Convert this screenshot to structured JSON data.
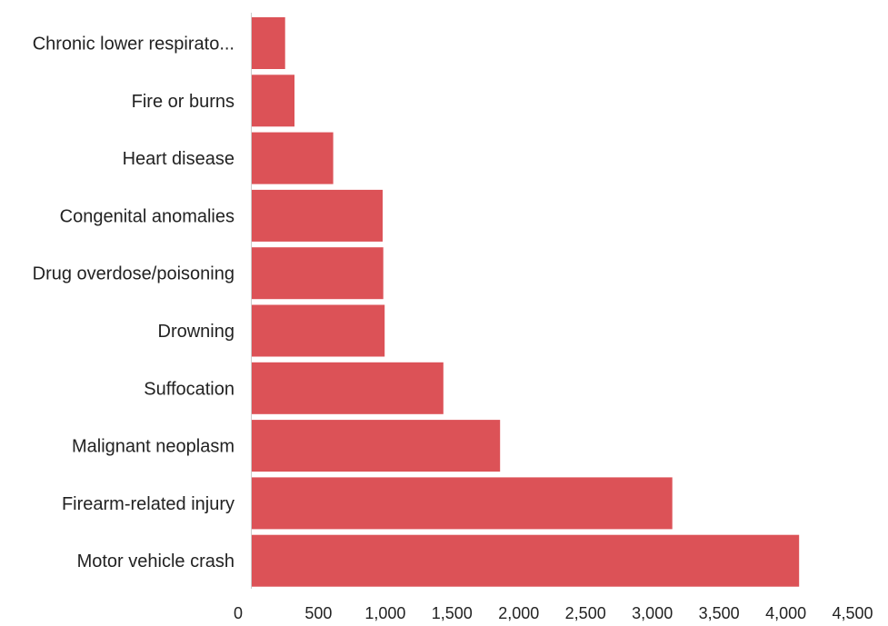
{
  "chart_data": {
    "type": "bar",
    "orientation": "horizontal",
    "categories": [
      "Chronic lower respirato...",
      "Fire or burns",
      "Heart disease",
      "Congenital anomalies",
      "Drug overdose/poisoning",
      "Drowning",
      "Suffocation",
      "Malignant neoplasm",
      "Firearm-related injury",
      "Motor vehicle crash"
    ],
    "values": [
      250,
      320,
      610,
      980,
      985,
      995,
      1435,
      1860,
      3150,
      4100
    ],
    "xticks": [
      0,
      500,
      1000,
      1500,
      2000,
      2500,
      3000,
      3500,
      4000,
      4500
    ],
    "xtick_labels": [
      "0",
      "500",
      "1,000",
      "1,500",
      "2,000",
      "2,500",
      "3,000",
      "3,500",
      "4,000",
      "4,500"
    ],
    "xlim": [
      0,
      4500
    ],
    "title": "",
    "xlabel": "",
    "ylabel": "",
    "grid": false,
    "legend": "none",
    "bar_color": "#DC5257"
  }
}
